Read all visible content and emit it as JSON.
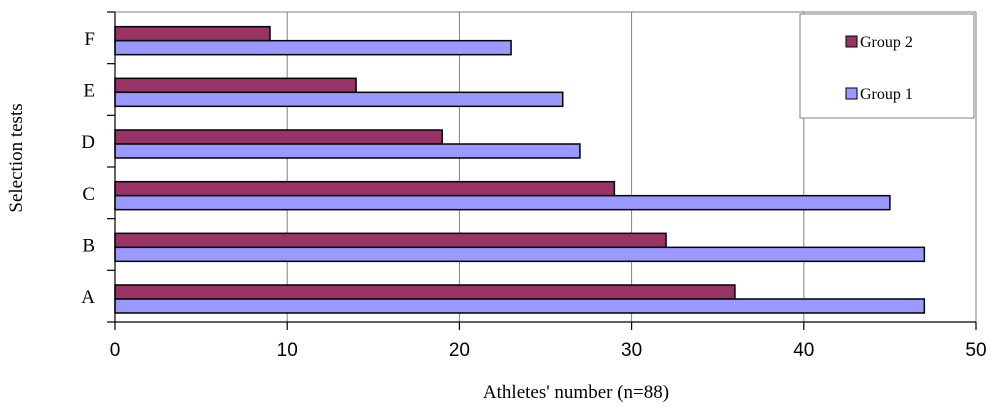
{
  "chart_data": {
    "type": "bar",
    "orientation": "horizontal",
    "categories": [
      "A",
      "B",
      "C",
      "D",
      "E",
      "F"
    ],
    "series": [
      {
        "name": "Group 1",
        "values": [
          47,
          47,
          45,
          27,
          26,
          23
        ],
        "color": "#9999ff"
      },
      {
        "name": "Group 2",
        "values": [
          36,
          32,
          29,
          19,
          14,
          9
        ],
        "color": "#993366"
      }
    ],
    "xlabel": "Athletes' number (n=88)",
    "ylabel": "Selection tests",
    "xlim": [
      0,
      50
    ],
    "xticks": [
      0,
      10,
      20,
      30,
      40,
      50
    ],
    "grid": "vertical",
    "legend": {
      "position": "top-right",
      "order": [
        "Group 2",
        "Group 1"
      ]
    }
  }
}
